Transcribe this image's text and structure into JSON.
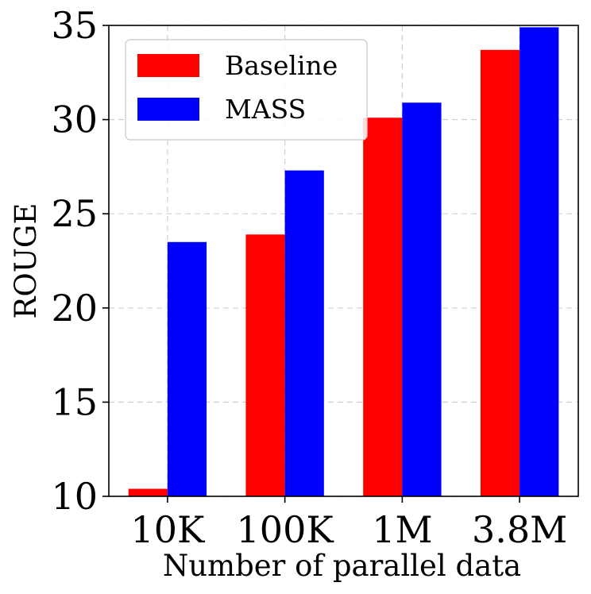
{
  "chart_data": {
    "type": "bar",
    "categories": [
      "10K",
      "100K",
      "1M",
      "3.8M"
    ],
    "series": [
      {
        "name": "Baseline",
        "color": "#ff0000",
        "values": [
          10.4,
          23.9,
          30.1,
          33.7
        ]
      },
      {
        "name": "MASS",
        "color": "#0000ff",
        "values": [
          23.5,
          27.3,
          30.9,
          34.9
        ]
      }
    ],
    "xlabel": "Number of parallel data",
    "ylabel": "ROUGE",
    "ylim": [
      10,
      35
    ],
    "yticks": [
      10,
      15,
      20,
      25,
      30,
      35
    ],
    "grid": true,
    "legend_position": "top-left"
  }
}
